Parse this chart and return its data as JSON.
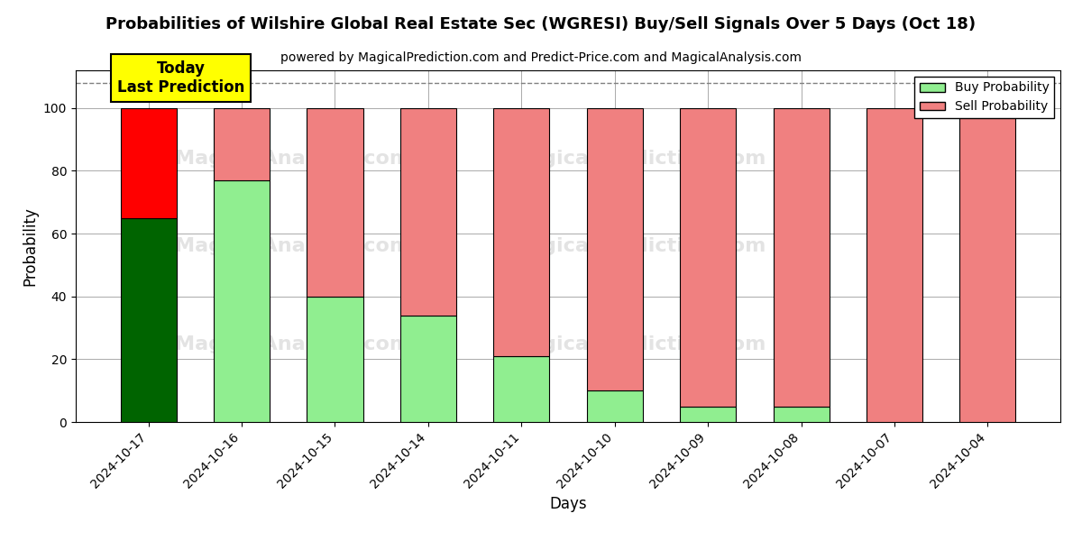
{
  "title": "Probabilities of Wilshire Global Real Estate Sec (WGRESI) Buy/Sell Signals Over 5 Days (Oct 18)",
  "subtitle": "powered by MagicalPrediction.com and Predict-Price.com and MagicalAnalysis.com",
  "xlabel": "Days",
  "ylabel": "Probability",
  "dates": [
    "2024-10-17",
    "2024-10-16",
    "2024-10-15",
    "2024-10-14",
    "2024-10-11",
    "2024-10-10",
    "2024-10-09",
    "2024-10-08",
    "2024-10-07",
    "2024-10-04"
  ],
  "buy_values": [
    65,
    77,
    40,
    34,
    21,
    10,
    5,
    5,
    0,
    0
  ],
  "sell_values": [
    35,
    23,
    60,
    66,
    79,
    90,
    95,
    95,
    100,
    100
  ],
  "buy_colors": [
    "#006400",
    "#90EE90",
    "#90EE90",
    "#90EE90",
    "#90EE90",
    "#90EE90",
    "#90EE90",
    "#90EE90",
    "#90EE90",
    "#90EE90"
  ],
  "sell_colors": [
    "#FF0000",
    "#F08080",
    "#F08080",
    "#F08080",
    "#F08080",
    "#F08080",
    "#F08080",
    "#F08080",
    "#F08080",
    "#F08080"
  ],
  "today_label_bg": "#FFFF00",
  "today_label_text": "Today\nLast Prediction",
  "legend_buy_color": "#90EE90",
  "legend_sell_color": "#F08080",
  "ylim": [
    0,
    112
  ],
  "dashed_line_y": 108,
  "bar_width": 0.6,
  "background_color": "#ffffff",
  "grid_color": "#aaaaaa"
}
